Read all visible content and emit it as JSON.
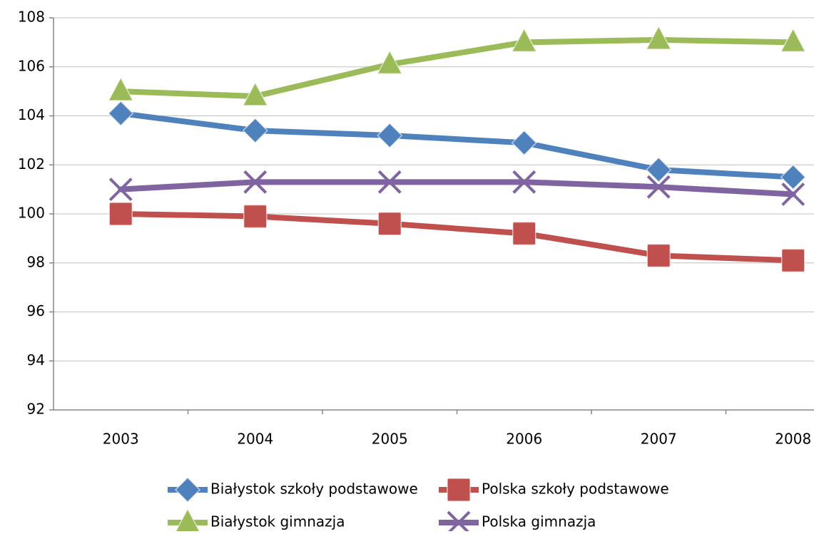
{
  "chart_data": {
    "type": "line",
    "categories": [
      "2003",
      "2004",
      "2005",
      "2006",
      "2007",
      "2008"
    ],
    "series": [
      {
        "name": "Białystok szkoły podstawowe",
        "color": "#4f81bd",
        "marker": "diamond",
        "values": [
          104.1,
          103.4,
          103.2,
          102.9,
          101.8,
          101.5
        ]
      },
      {
        "name": "Polska szkoły podstawowe",
        "color": "#c0504d",
        "marker": "square",
        "values": [
          100.0,
          99.9,
          99.6,
          99.2,
          98.3,
          98.1
        ]
      },
      {
        "name": "Białystok gimnazja",
        "color": "#9bbb59",
        "marker": "triangle",
        "values": [
          105.0,
          104.8,
          106.1,
          107.0,
          107.1,
          107.0
        ]
      },
      {
        "name": "Polska gimnazja",
        "color": "#8064a2",
        "marker": "x",
        "values": [
          101.0,
          101.3,
          101.3,
          101.3,
          101.1,
          100.8
        ]
      }
    ],
    "ylim": [
      92,
      108
    ],
    "yticks": [
      92,
      94,
      96,
      98,
      100,
      102,
      104,
      106,
      108
    ],
    "grid": true
  }
}
